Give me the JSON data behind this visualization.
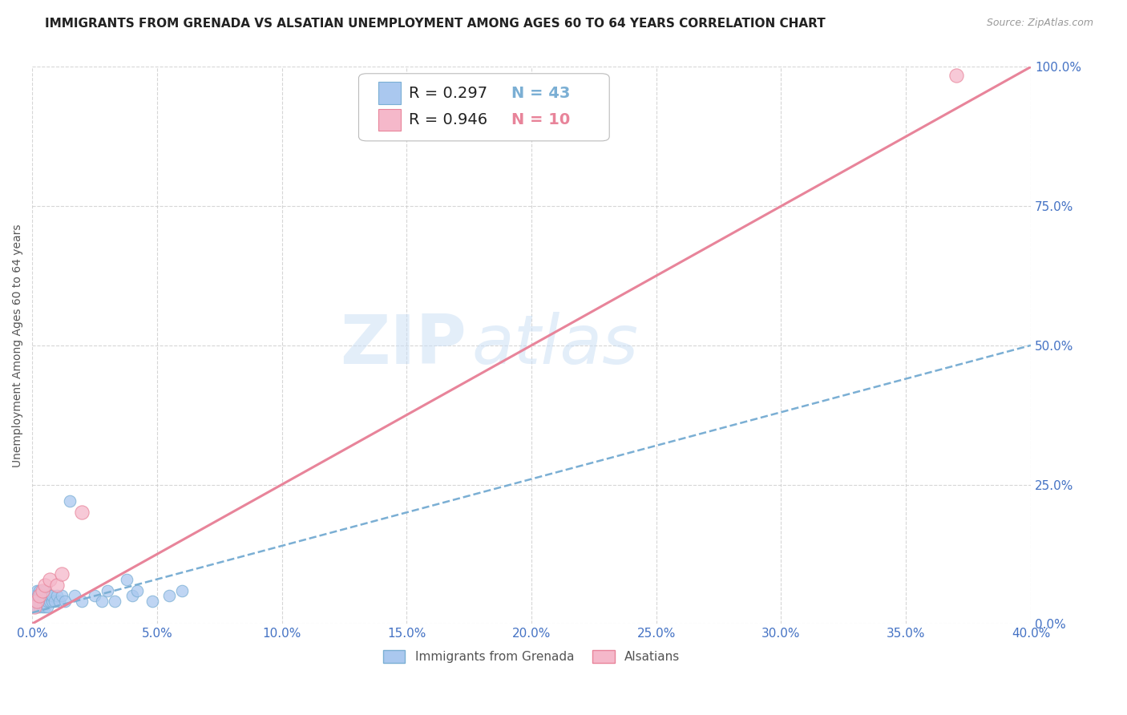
{
  "title": "IMMIGRANTS FROM GRENADA VS ALSATIAN UNEMPLOYMENT AMONG AGES 60 TO 64 YEARS CORRELATION CHART",
  "source": "Source: ZipAtlas.com",
  "ylabel": "Unemployment Among Ages 60 to 64 years",
  "xlim": [
    0.0,
    0.4
  ],
  "ylim": [
    0.0,
    1.0
  ],
  "xtick_labels": [
    "0.0%",
    "5.0%",
    "10.0%",
    "15.0%",
    "20.0%",
    "25.0%",
    "30.0%",
    "35.0%",
    "40.0%"
  ],
  "xtick_values": [
    0.0,
    0.05,
    0.1,
    0.15,
    0.2,
    0.25,
    0.3,
    0.35,
    0.4
  ],
  "ytick_labels": [
    "0.0%",
    "25.0%",
    "50.0%",
    "75.0%",
    "100.0%"
  ],
  "ytick_values": [
    0.0,
    0.25,
    0.5,
    0.75,
    1.0
  ],
  "background_color": "#ffffff",
  "grid_color": "#cccccc",
  "watermark_zip": "ZIP",
  "watermark_atlas": "atlas",
  "legend_r1": "R = 0.297",
  "legend_n1": "N = 43",
  "legend_r2": "R = 0.946",
  "legend_n2": "N = 10",
  "series1_color": "#aac8ef",
  "series1_edge": "#7bafd4",
  "series2_color": "#f5b8ca",
  "series2_edge": "#e8849a",
  "trendline1_color": "#7bafd4",
  "trendline2_color": "#e8849a",
  "tick_color": "#4472c4",
  "grenada_x": [
    0.001,
    0.001,
    0.001,
    0.002,
    0.002,
    0.002,
    0.002,
    0.003,
    0.003,
    0.003,
    0.003,
    0.004,
    0.004,
    0.004,
    0.004,
    0.005,
    0.005,
    0.005,
    0.006,
    0.006,
    0.006,
    0.007,
    0.007,
    0.008,
    0.008,
    0.009,
    0.01,
    0.011,
    0.012,
    0.013,
    0.015,
    0.017,
    0.02,
    0.025,
    0.028,
    0.03,
    0.033,
    0.038,
    0.04,
    0.042,
    0.048,
    0.055,
    0.06
  ],
  "grenada_y": [
    0.03,
    0.04,
    0.05,
    0.03,
    0.04,
    0.05,
    0.06,
    0.03,
    0.04,
    0.05,
    0.06,
    0.03,
    0.04,
    0.05,
    0.06,
    0.03,
    0.05,
    0.06,
    0.03,
    0.04,
    0.05,
    0.04,
    0.05,
    0.04,
    0.05,
    0.04,
    0.05,
    0.04,
    0.05,
    0.04,
    0.22,
    0.05,
    0.04,
    0.05,
    0.04,
    0.06,
    0.04,
    0.08,
    0.05,
    0.06,
    0.04,
    0.05,
    0.06
  ],
  "alsatian_x": [
    0.001,
    0.002,
    0.003,
    0.004,
    0.005,
    0.007,
    0.01,
    0.012,
    0.02,
    0.37
  ],
  "alsatian_y": [
    0.03,
    0.04,
    0.05,
    0.06,
    0.07,
    0.08,
    0.07,
    0.09,
    0.2,
    0.985
  ],
  "grenada_trendline": [
    0.0,
    0.4,
    0.02,
    0.5
  ],
  "alsatian_trendline": [
    0.0,
    0.4,
    0.0,
    1.0
  ],
  "marker_size": 110,
  "title_fontsize": 11,
  "label_fontsize": 10,
  "tick_fontsize": 11,
  "legend_fontsize": 14,
  "source_fontsize": 9
}
